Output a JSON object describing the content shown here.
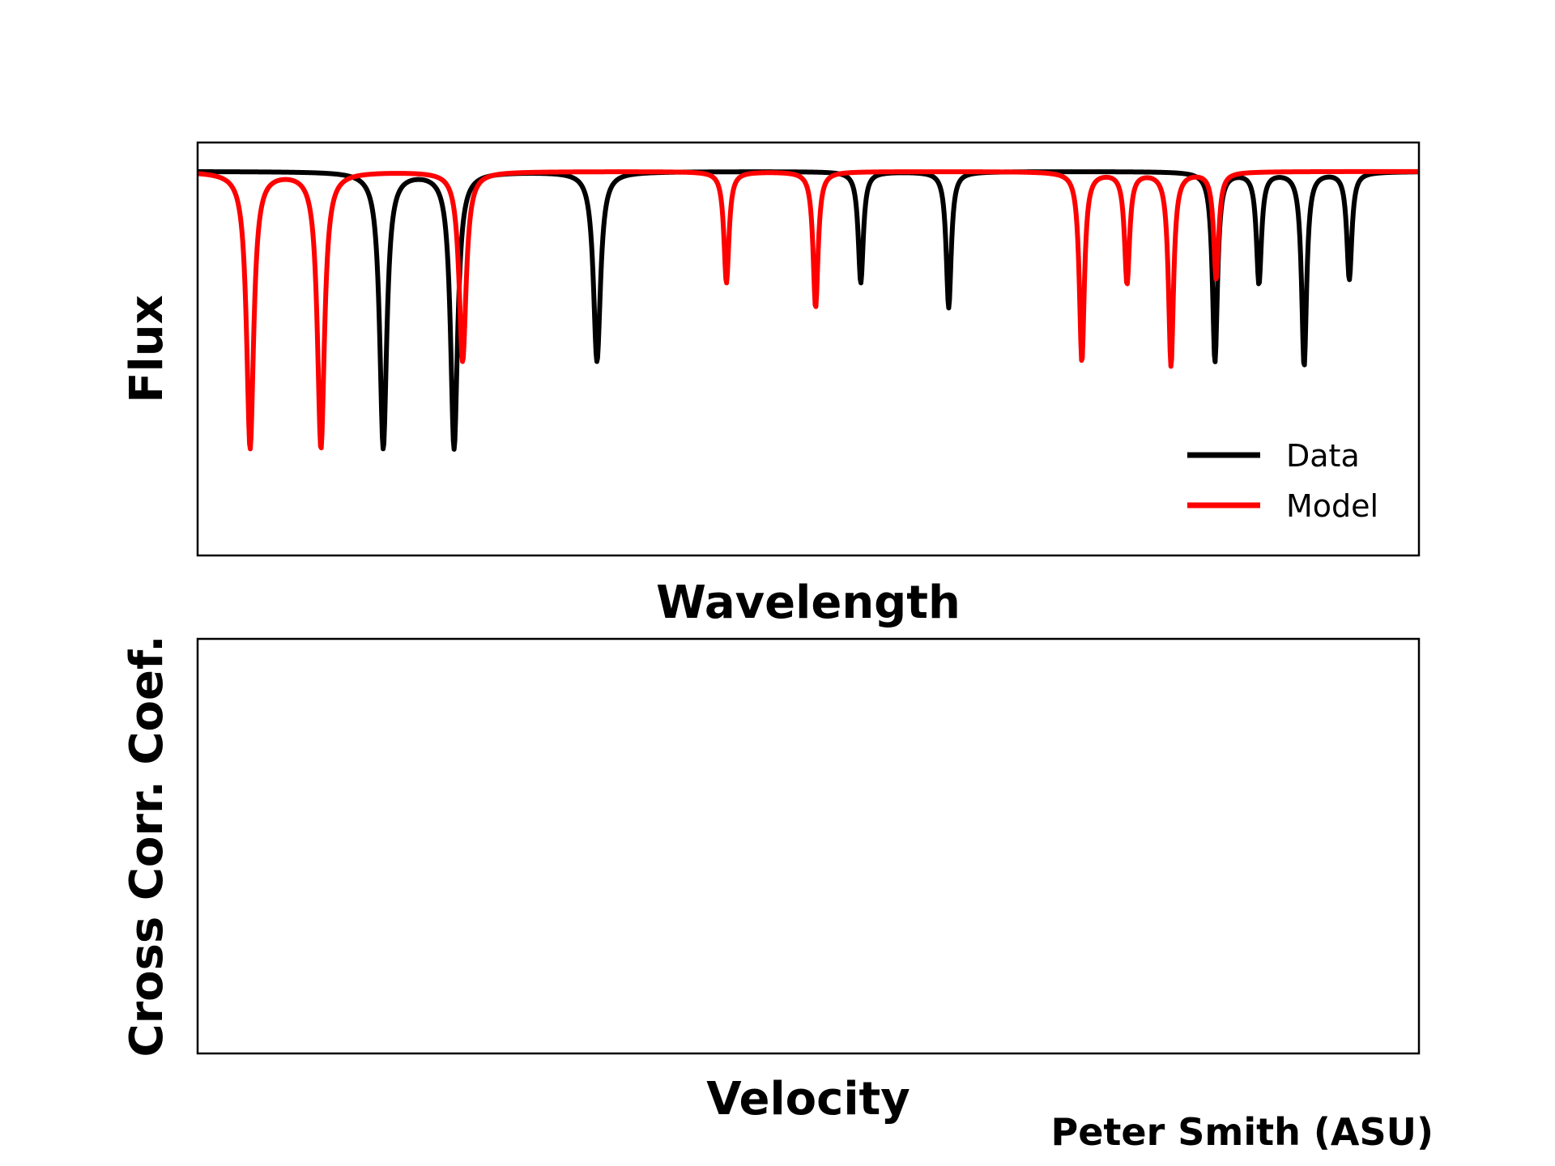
{
  "credit": "Peter Smith (ASU)",
  "colors": {
    "data": "#000000",
    "model": "#ff0000",
    "frame": "#000000"
  },
  "chart_data": [
    {
      "type": "line",
      "xlabel": "Wavelength",
      "ylabel": "Flux",
      "xlim": [
        0,
        1
      ],
      "ylim": [
        0,
        1
      ],
      "grid": false,
      "ticks": false,
      "legend": {
        "placement": "bottom-right",
        "entries": [
          "Data",
          "Model"
        ]
      },
      "continuum": 0.93,
      "series": [
        {
          "name": "Data",
          "color": "#000000",
          "lines": [
            {
              "center": 0.152,
              "depth": 0.67,
              "width": 0.0035
            },
            {
              "center": 0.21,
              "depth": 0.67,
              "width": 0.0035
            },
            {
              "center": 0.327,
              "depth": 0.46,
              "width": 0.0035
            },
            {
              "center": 0.543,
              "depth": 0.27,
              "width": 0.0025
            },
            {
              "center": 0.615,
              "depth": 0.33,
              "width": 0.0025
            },
            {
              "center": 0.833,
              "depth": 0.46,
              "width": 0.0025
            },
            {
              "center": 0.869,
              "depth": 0.27,
              "width": 0.0025
            },
            {
              "center": 0.906,
              "depth": 0.47,
              "width": 0.0025
            },
            {
              "center": 0.943,
              "depth": 0.26,
              "width": 0.0025
            }
          ]
        },
        {
          "name": "Model",
          "color": "#ff0000",
          "lines": [
            {
              "center": 0.043,
              "depth": 0.67,
              "width": 0.0035
            },
            {
              "center": 0.101,
              "depth": 0.67,
              "width": 0.0035
            },
            {
              "center": 0.217,
              "depth": 0.46,
              "width": 0.0035
            },
            {
              "center": 0.433,
              "depth": 0.27,
              "width": 0.0025
            },
            {
              "center": 0.506,
              "depth": 0.33,
              "width": 0.0025
            },
            {
              "center": 0.724,
              "depth": 0.46,
              "width": 0.0025
            },
            {
              "center": 0.761,
              "depth": 0.27,
              "width": 0.0025
            },
            {
              "center": 0.797,
              "depth": 0.47,
              "width": 0.0025
            },
            {
              "center": 0.834,
              "depth": 0.26,
              "width": 0.0025
            }
          ]
        }
      ]
    },
    {
      "type": "line",
      "xlabel": "Velocity",
      "ylabel": "Cross Corr. Coef.",
      "grid": false,
      "ticks": false,
      "series": []
    }
  ]
}
